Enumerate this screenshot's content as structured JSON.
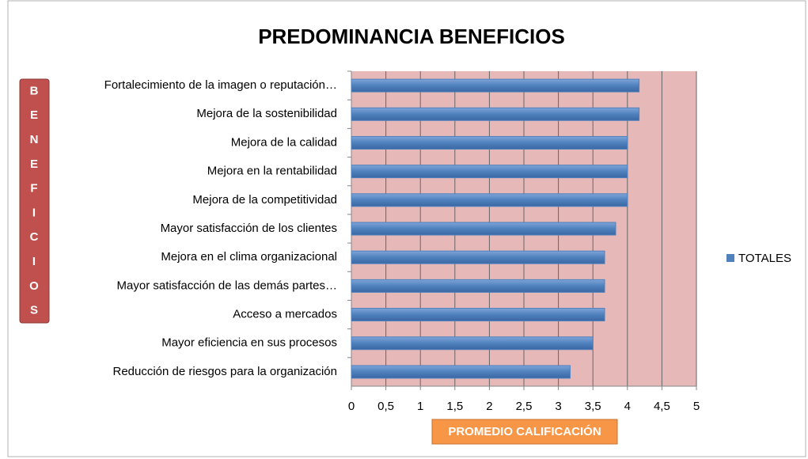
{
  "chart_data": {
    "type": "barh",
    "title": "PREDOMINANCIA BENEFICIOS",
    "y_label": "BENEFICIOS",
    "x_label": "PROMEDIO CALIFICACIÓN",
    "categories": [
      "Fortalecimiento de la imagen o reputación…",
      "Mejora de la sostenibilidad",
      "Mejora de la calidad",
      "Mejora en la rentabilidad",
      "Mejora de la competitividad",
      "Mayor satisfacción de los clientes",
      "Mejora en el clima organizacional",
      "Mayor satisfacción de las demás partes…",
      "Acceso a mercados",
      "Mayor eficiencia en sus procesos",
      "Reducción de riesgos para la organización"
    ],
    "series": [
      {
        "name": "TOTALES",
        "color": "#4f81bd",
        "values": [
          4.17,
          4.17,
          4.0,
          4.0,
          4.0,
          3.83,
          3.67,
          3.67,
          3.67,
          3.5,
          3.17
        ]
      }
    ],
    "xlim": [
      0,
      5
    ],
    "xticks": [
      0,
      {
        "value": 0.5,
        "label": "0,5"
      },
      1,
      {
        "value": 1.5,
        "label": "1,5"
      },
      2,
      {
        "value": 2.5,
        "label": "2,5"
      },
      3,
      {
        "value": 3.5,
        "label": "3,5"
      },
      4,
      {
        "value": 4.5,
        "label": "4,5"
      },
      5
    ],
    "grid": true,
    "legend": "right"
  }
}
